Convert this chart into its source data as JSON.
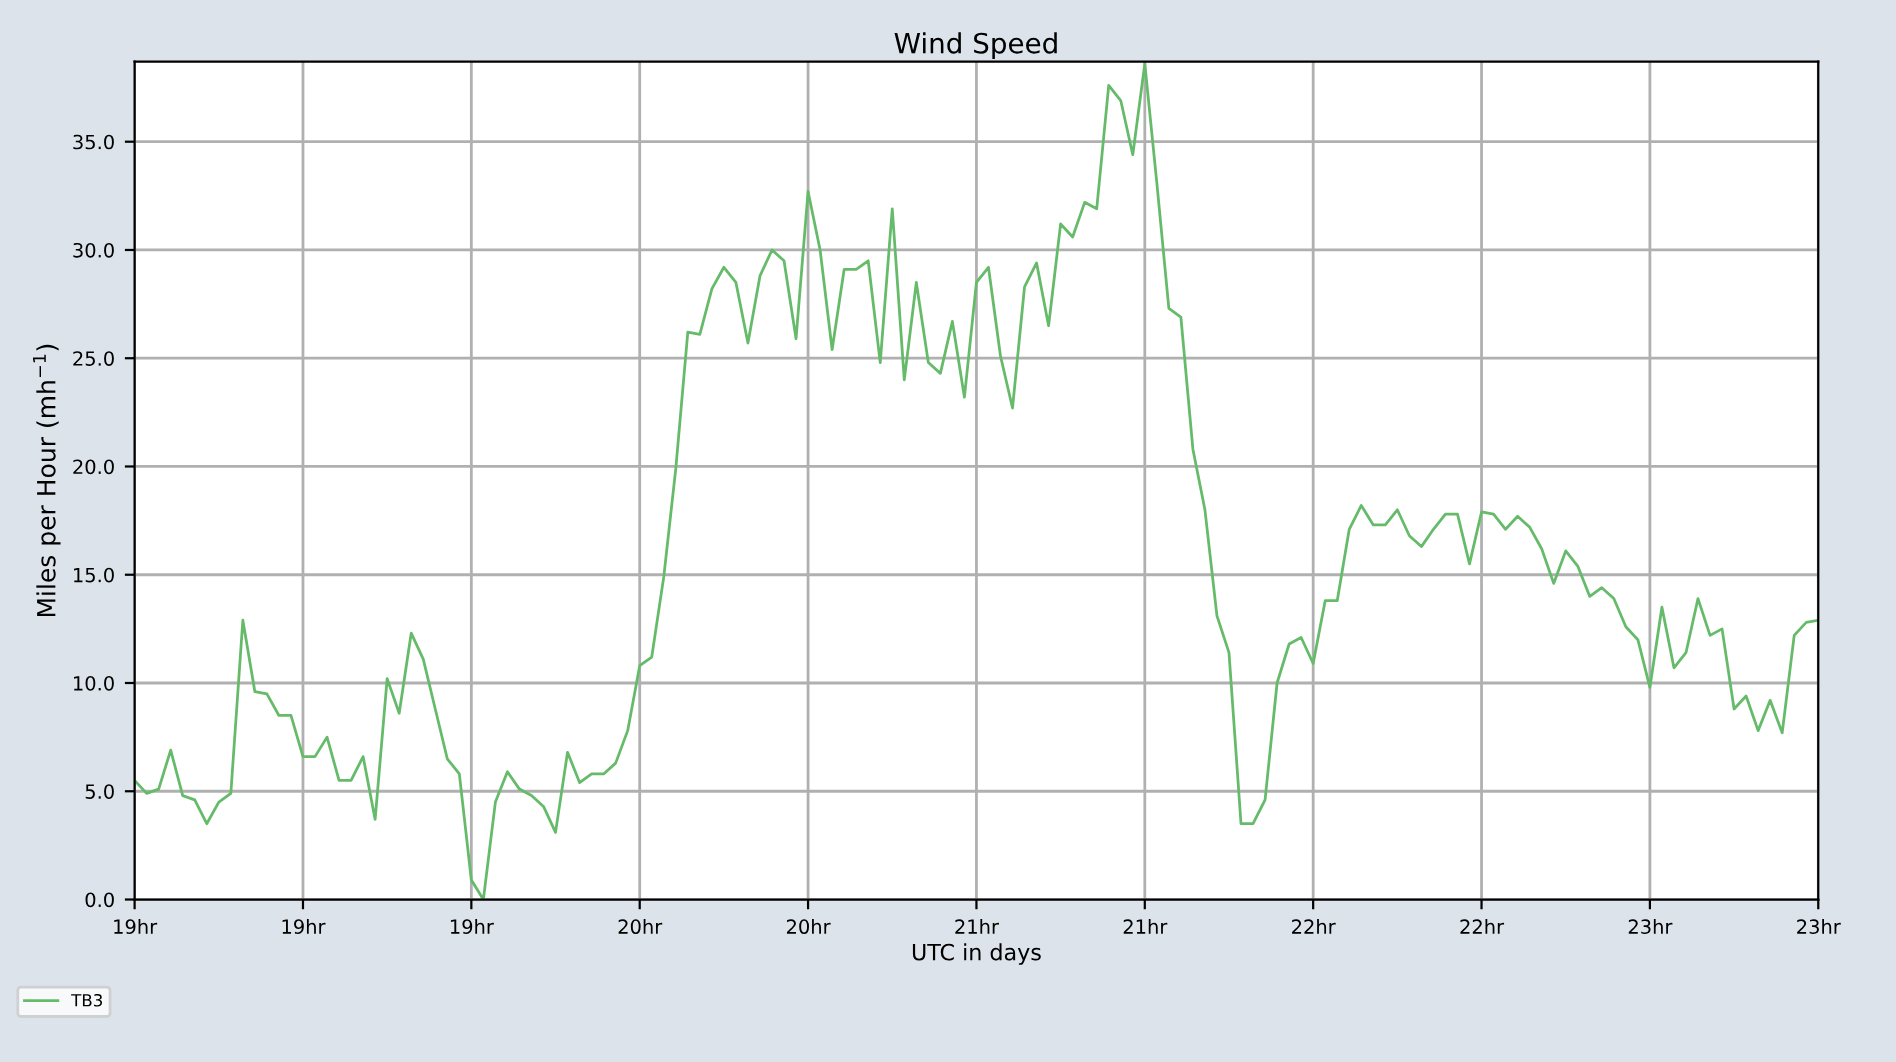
{
  "chart_data": {
    "type": "line",
    "title": "Wind Speed",
    "xlabel": "UTC in days",
    "ylabel": "Miles per Hour (mh$^{−1}$)",
    "ylim": [
      0,
      38.7
    ],
    "categories": [
      "19hr",
      null,
      null,
      null,
      null,
      null,
      null,
      null,
      null,
      null,
      null,
      null,
      null,
      null,
      "19hr",
      null,
      null,
      null,
      null,
      null,
      null,
      null,
      null,
      null,
      null,
      null,
      null,
      null,
      "19hr",
      null,
      null,
      null,
      null,
      null,
      null,
      null,
      null,
      null,
      null,
      null,
      null,
      null,
      "20hr",
      null,
      null,
      null,
      null,
      null,
      null,
      null,
      null,
      null,
      null,
      null,
      null,
      null,
      "20hr",
      null,
      null,
      null,
      null,
      null,
      null,
      null,
      null,
      null,
      null,
      null,
      null,
      null,
      "21hr",
      null,
      null,
      null,
      null,
      null,
      null,
      null,
      null,
      null,
      null,
      null,
      null,
      null,
      "21hr",
      null,
      null,
      null,
      null,
      null,
      null,
      null,
      null,
      null,
      null,
      null,
      null,
      null,
      "22hr",
      null,
      null,
      null,
      null,
      null,
      null,
      null,
      null,
      null,
      null,
      null,
      null,
      null,
      "22hr",
      null,
      null,
      null,
      null,
      null,
      null,
      null,
      null,
      null,
      null,
      null,
      null,
      null,
      "23hr",
      null,
      null,
      null,
      null,
      null,
      null,
      null,
      null,
      null,
      null,
      null,
      null,
      null,
      "23hr"
    ],
    "yticks": [
      {
        "value": 0,
        "label": "0.0"
      },
      {
        "value": 5,
        "label": "5.0"
      },
      {
        "value": 10,
        "label": "10.0"
      },
      {
        "value": 15,
        "label": "15.0"
      },
      {
        "value": 20,
        "label": "20.0"
      },
      {
        "value": 25,
        "label": "25.0"
      },
      {
        "value": 30,
        "label": "30.0"
      },
      {
        "value": 35,
        "label": "35.0"
      }
    ],
    "grid": true,
    "legend": "bottom left",
    "marker": "none",
    "line_style": "solid",
    "series": [
      {
        "name": "TB3",
        "color": "#66bb6a",
        "values": [
          5.5,
          4.9,
          5.1,
          6.9,
          4.8,
          4.6,
          3.5,
          4.5,
          4.9,
          12.9,
          9.6,
          9.5,
          8.5,
          8.5,
          6.6,
          6.6,
          7.5,
          5.5,
          5.5,
          6.6,
          3.7,
          10.2,
          8.6,
          12.3,
          11.1,
          8.8,
          6.5,
          5.8,
          0.9,
          0,
          4.5,
          5.9,
          5.1,
          4.8,
          4.3,
          3.1,
          6.8,
          5.4,
          5.8,
          5.8,
          6.3,
          7.8,
          10.8,
          11.2,
          14.9,
          19.9,
          26.2,
          26.1,
          28.2,
          29.2,
          28.5,
          25.7,
          28.8,
          30.0,
          29.5,
          25.9,
          32.7,
          30.0,
          25.4,
          29.1,
          29.1,
          29.5,
          24.8,
          31.9,
          24.0,
          28.5,
          24.8,
          24.3,
          26.7,
          23.2,
          28.5,
          29.2,
          25.1,
          22.7,
          28.3,
          29.4,
          26.5,
          31.2,
          30.6,
          32.2,
          31.9,
          37.6,
          36.9,
          34.4,
          38.6,
          33.1,
          27.3,
          26.9,
          20.8,
          18.0,
          13.1,
          11.4,
          3.5,
          3.5,
          4.6,
          10.0,
          11.8,
          12.1,
          10.9,
          13.8,
          13.8,
          17.1,
          18.2,
          17.3,
          17.3,
          18.0,
          16.8,
          16.3,
          17.1,
          17.8,
          17.8,
          15.5,
          17.9,
          17.8,
          17.1,
          17.7,
          17.2,
          16.2,
          14.6,
          16.1,
          15.4,
          14.0,
          14.4,
          13.9,
          12.6,
          12.0,
          9.8,
          13.5,
          10.7,
          11.4,
          13.9,
          12.2,
          12.5,
          8.8,
          9.4,
          7.8,
          9.2,
          7.7,
          12.2,
          12.8,
          12.9
        ]
      }
    ]
  }
}
